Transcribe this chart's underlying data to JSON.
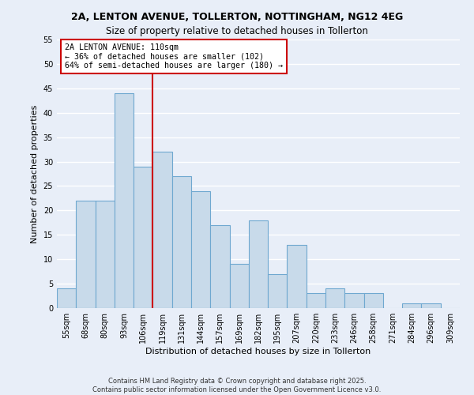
{
  "title": "2A, LENTON AVENUE, TOLLERTON, NOTTINGHAM, NG12 4EG",
  "subtitle": "Size of property relative to detached houses in Tollerton",
  "xlabel": "Distribution of detached houses by size in Tollerton",
  "ylabel": "Number of detached properties",
  "categories": [
    "55sqm",
    "68sqm",
    "80sqm",
    "93sqm",
    "106sqm",
    "119sqm",
    "131sqm",
    "144sqm",
    "157sqm",
    "169sqm",
    "182sqm",
    "195sqm",
    "207sqm",
    "220sqm",
    "233sqm",
    "246sqm",
    "258sqm",
    "271sqm",
    "284sqm",
    "296sqm",
    "309sqm"
  ],
  "values": [
    4,
    22,
    22,
    44,
    29,
    32,
    27,
    24,
    17,
    9,
    18,
    7,
    13,
    3,
    4,
    3,
    3,
    0,
    1,
    1,
    0
  ],
  "bar_color": "#c8daea",
  "bar_edge_color": "#6fa8d0",
  "vline_x_index": 4,
  "vline_color": "#cc0000",
  "annotation_title": "2A LENTON AVENUE: 110sqm",
  "annotation_line1": "← 36% of detached houses are smaller (102)",
  "annotation_line2": "64% of semi-detached houses are larger (180) →",
  "annotation_box_color": "#ffffff",
  "annotation_box_edge": "#cc0000",
  "ylim": [
    0,
    55
  ],
  "yticks": [
    0,
    5,
    10,
    15,
    20,
    25,
    30,
    35,
    40,
    45,
    50,
    55
  ],
  "footer_line1": "Contains HM Land Registry data © Crown copyright and database right 2025.",
  "footer_line2": "Contains public sector information licensed under the Open Government Licence v3.0.",
  "background_color": "#e8eef8",
  "grid_color": "#ffffff",
  "title_fontsize": 9,
  "subtitle_fontsize": 8.5,
  "axis_label_fontsize": 8,
  "tick_fontsize": 7,
  "footer_fontsize": 6
}
